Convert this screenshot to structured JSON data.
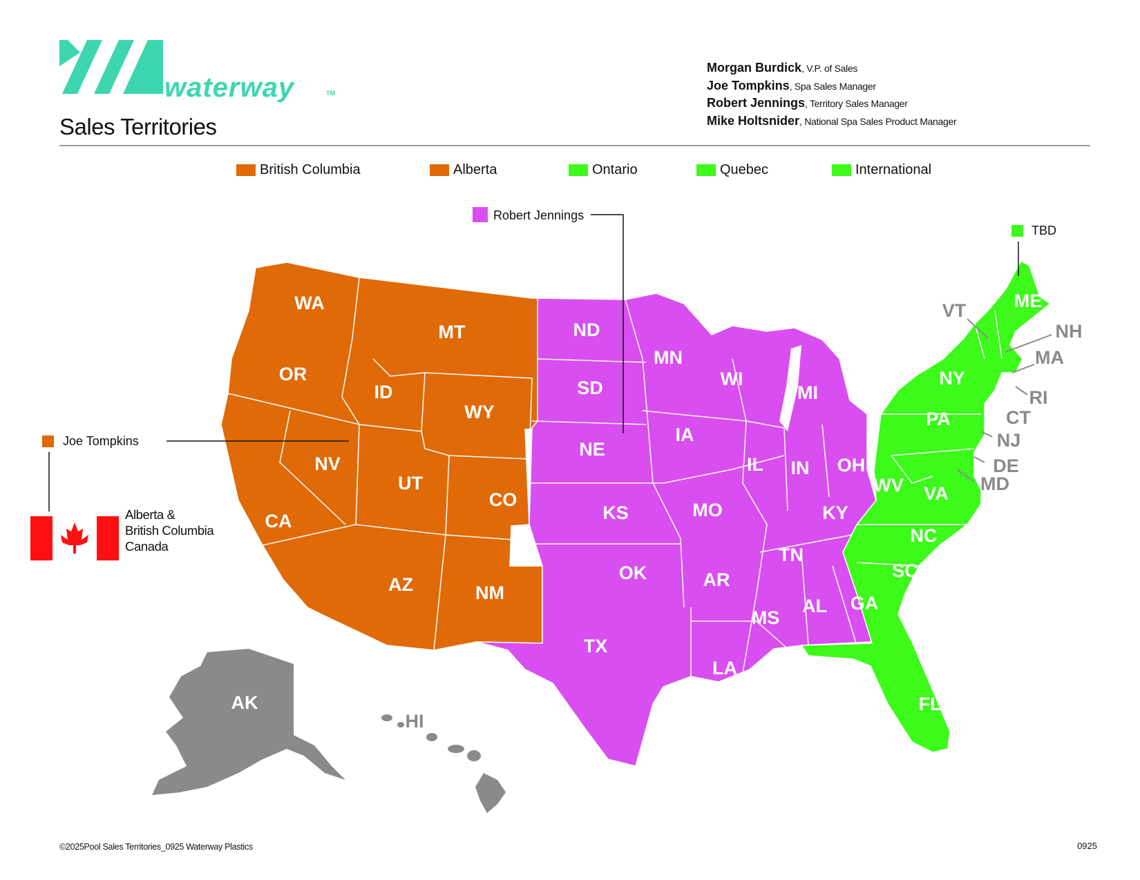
{
  "brand": {
    "name": "waterway",
    "trademark": "TM",
    "color": "#3dd6b0"
  },
  "page_title": "Sales Territories",
  "contacts": [
    {
      "name": "Morgan Burdick",
      "role": ", V.P. of Sales"
    },
    {
      "name": "Joe Tompkins",
      "role": ", Spa Sales Manager"
    },
    {
      "name": "Robert Jennings",
      "role": ", Territory Sales Manager"
    },
    {
      "name": "Mike Holtsnider",
      "role": ", National Spa Sales Product Manager"
    }
  ],
  "legend": [
    {
      "label": "British Columbia",
      "color": "#e06a08"
    },
    {
      "label": "Alberta",
      "color": "#e06a08"
    },
    {
      "label": "Ontario",
      "color": "#3cfa1a"
    },
    {
      "label": "Quebec",
      "color": "#3cfa1a"
    },
    {
      "label": "International",
      "color": "#3cfa1a"
    }
  ],
  "territories": {
    "west": {
      "rep": "Joe Tompkins",
      "color": "#e06a08"
    },
    "central": {
      "rep": "Robert Jennings",
      "color": "#d94ef0"
    },
    "east": {
      "rep": "TBD",
      "color": "#3cfa1a"
    },
    "unassigned": {
      "color": "#8a8a8a"
    }
  },
  "canada_note": {
    "line1": "Alberta &",
    "line2": "British Columbia",
    "line3": "Canada",
    "flag_red": "#ff1010"
  },
  "state_labels": {
    "west": [
      "WA",
      "OR",
      "CA",
      "ID",
      "NV",
      "MT",
      "WY",
      "UT",
      "CO",
      "AZ",
      "NM"
    ],
    "central": [
      "ND",
      "SD",
      "NE",
      "KS",
      "OK",
      "TX",
      "MN",
      "IA",
      "MO",
      "AR",
      "LA",
      "WI",
      "IL",
      "MI",
      "IN",
      "OH",
      "KY",
      "TN",
      "MS",
      "AL",
      "GA"
    ],
    "east_inside": [
      "ME",
      "NY",
      "PA",
      "WV",
      "VA",
      "NC",
      "SC",
      "FL"
    ],
    "east_callouts": [
      "VT",
      "NH",
      "MA",
      "RI",
      "CT",
      "NJ",
      "DE",
      "MD"
    ],
    "other": [
      "AK",
      "HI"
    ]
  },
  "footer": {
    "left": "©2025Pool Sales Territories_0925 Waterway Plastics",
    "right": "0925"
  }
}
